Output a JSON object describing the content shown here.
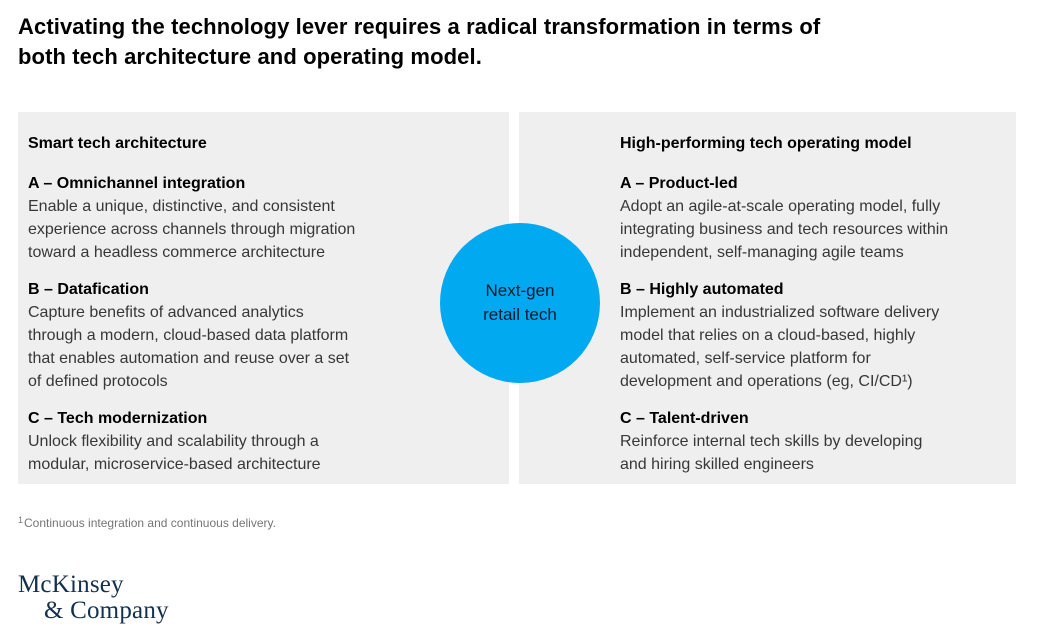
{
  "title": "Activating the technology lever requires a radical transformation in terms of\nboth tech architecture and operating model.",
  "panels": {
    "left": {
      "heading": "Smart tech architecture",
      "items": [
        {
          "title": "A – Omnichannel integration",
          "body": "Enable a unique, distinctive, and consistent\nexperience across channels through migration\ntoward a headless commerce architecture"
        },
        {
          "title": "B – Datafication",
          "body": "Capture benefits of advanced analytics\nthrough a modern, cloud-based data platform\nthat enables automation and reuse over a set\nof defined protocols"
        },
        {
          "title": "C – Tech modernization",
          "body": "Unlock flexibility and scalability through a\nmodular, microservice-based architecture"
        }
      ]
    },
    "right": {
      "heading": "High-performing tech operating model",
      "items": [
        {
          "title": "A – Product-led",
          "body": "Adopt an agile-at-scale operating model, fully\nintegrating business and tech resources within\nindependent, self-managing agile teams"
        },
        {
          "title": "B – Highly automated",
          "body": "Implement an industrialized software delivery\nmodel that relies on a cloud-based, highly\nautomated, self-service platform for\ndevelopment and operations (eg, CI/CD¹)"
        },
        {
          "title": "C – Talent-driven",
          "body": "Reinforce internal tech skills by developing\nand hiring skilled engineers"
        }
      ]
    }
  },
  "circle": {
    "label": "Next-gen\nretail tech",
    "color": "#00a9f0"
  },
  "footnote": {
    "marker": "1",
    "text": "Continuous integration and continuous delivery."
  },
  "logo": {
    "line1": "McKinsey",
    "line2": "& Company",
    "color": "#14304d"
  },
  "colors": {
    "panel_bg": "#efefef",
    "accent_blue": "#00a9f0",
    "logo_navy": "#14304d",
    "body_text": "#373737",
    "footnote_text": "#757575"
  }
}
